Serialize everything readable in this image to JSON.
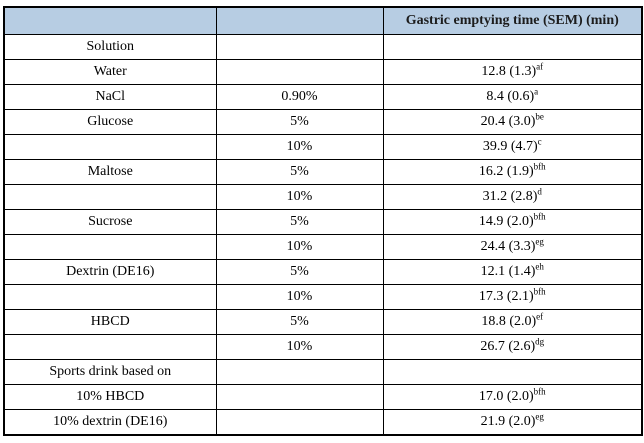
{
  "colors": {
    "header_bg": "#b7cde3",
    "border": "#000000",
    "text": "#000000"
  },
  "chart_data": {
    "type": "table",
    "title": "Gastric emptying time table",
    "header": [
      "",
      "",
      "Gastric emptying time (SEM) (min)"
    ],
    "rows": [
      {
        "label": "Solution",
        "conc": "",
        "value": "",
        "sup": ""
      },
      {
        "label": "Water",
        "conc": "",
        "value": "12.8 (1.3)",
        "sup": "af"
      },
      {
        "label": "NaCl",
        "conc": "0.90%",
        "value": "8.4 (0.6)",
        "sup": "a"
      },
      {
        "label": "Glucose",
        "conc": "5%",
        "value": "20.4 (3.0)",
        "sup": "be"
      },
      {
        "label": "",
        "conc": "10%",
        "value": "39.9 (4.7)",
        "sup": "c"
      },
      {
        "label": "Maltose",
        "conc": "5%",
        "value": "16.2 (1.9)",
        "sup": "bfh"
      },
      {
        "label": "",
        "conc": "10%",
        "value": "31.2 (2.8)",
        "sup": "d"
      },
      {
        "label": "Sucrose",
        "conc": "5%",
        "value": "14.9 (2.0)",
        "sup": "bfh"
      },
      {
        "label": "",
        "conc": "10%",
        "value": "24.4 (3.3)",
        "sup": "eg"
      },
      {
        "label": "Dextrin (DE16)",
        "conc": "5%",
        "value": "12.1 (1.4)",
        "sup": "eh"
      },
      {
        "label": "",
        "conc": "10%",
        "value": "17.3 (2.1)",
        "sup": "bfh"
      },
      {
        "label": "HBCD",
        "conc": "5%",
        "value": "18.8 (2.0)",
        "sup": "ef"
      },
      {
        "label": "",
        "conc": "10%",
        "value": "26.7 (2.6)",
        "sup": "dg"
      },
      {
        "label": "Sports drink based on",
        "conc": "",
        "value": "",
        "sup": ""
      },
      {
        "label": "10% HBCD",
        "conc": "",
        "value": "17.0 (2.0)",
        "sup": "bfh"
      },
      {
        "label": "10% dextrin (DE16)",
        "conc": "",
        "value": "21.9 (2.0)",
        "sup": "eg"
      }
    ]
  }
}
